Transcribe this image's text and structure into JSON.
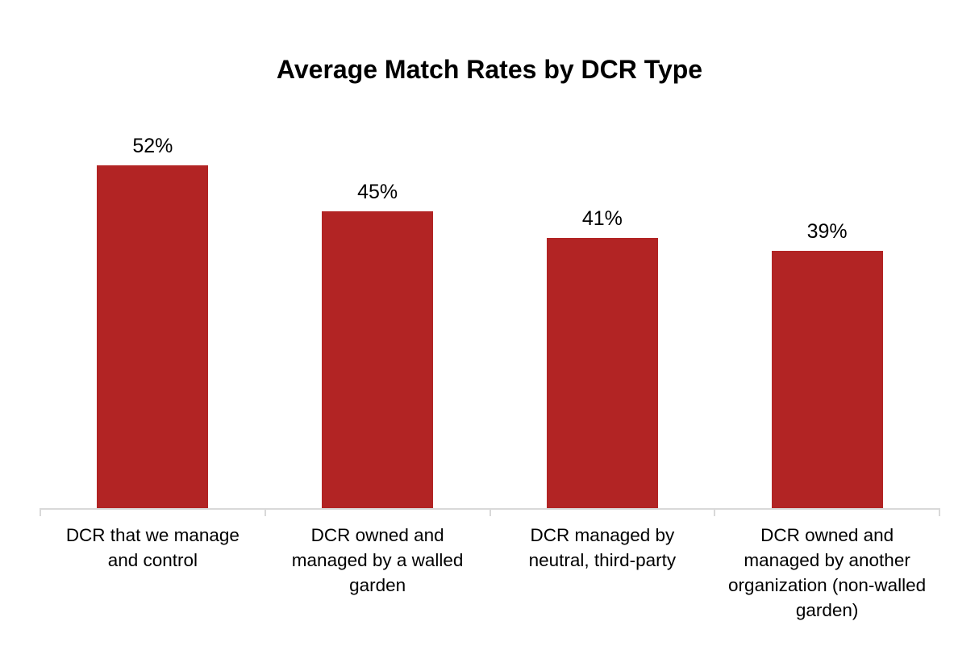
{
  "chart": {
    "title": "Average Match Rates by DCR Type"
  },
  "chart_data": {
    "type": "bar",
    "title": "Average Match Rates by DCR Type",
    "categories": [
      "DCR that we manage and control",
      "DCR owned and managed by a walled garden",
      "DCR managed by neutral, third-party",
      "DCR owned and managed by another organization (non-walled garden)"
    ],
    "values": [
      52,
      45,
      41,
      39
    ],
    "value_labels": [
      "52%",
      "45%",
      "41%",
      "39%"
    ],
    "xlabel": "",
    "ylabel": "",
    "ylim": [
      0,
      55
    ],
    "grid": "off",
    "legend": "none",
    "data_label_position": "above-bar",
    "colors": {
      "bar": "#B22424",
      "axis": "#D9D9D9",
      "text": "#000000",
      "background": "#FFFFFF"
    }
  }
}
